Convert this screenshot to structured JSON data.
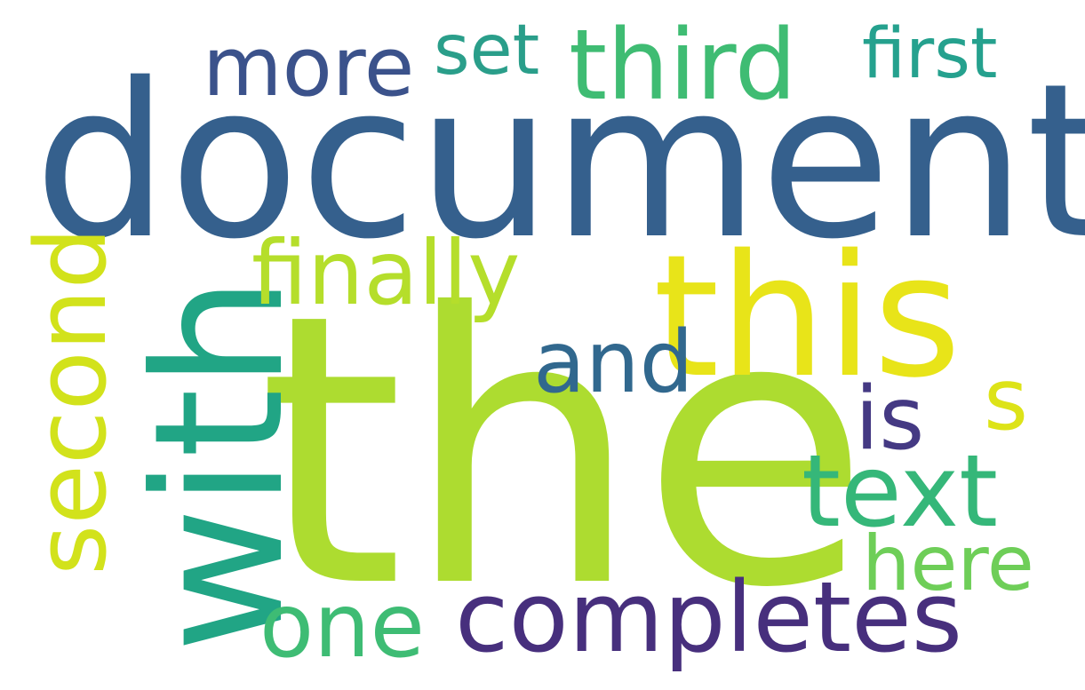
{
  "wordcloud": {
    "background": "#ffffff",
    "words": [
      {
        "text": "document",
        "color": "#35608d"
      },
      {
        "text": "the",
        "color": "#addc30"
      },
      {
        "text": "this",
        "color": "#e8e419"
      },
      {
        "text": "with",
        "color": "#21a585"
      },
      {
        "text": "completes",
        "color": "#472f7d"
      },
      {
        "text": "third",
        "color": "#3fbc73"
      },
      {
        "text": "finally",
        "color": "#b5de2b"
      },
      {
        "text": "first",
        "color": "#25a18e"
      },
      {
        "text": "more",
        "color": "#3b528b"
      },
      {
        "text": "set",
        "color": "#2a9e8a"
      },
      {
        "text": "second",
        "color": "#d2e21b"
      },
      {
        "text": "and",
        "color": "#31688e"
      },
      {
        "text": "is",
        "color": "#443983"
      },
      {
        "text": "s",
        "color": "#dde318"
      },
      {
        "text": "text",
        "color": "#35b779"
      },
      {
        "text": "here",
        "color": "#6ece58"
      },
      {
        "text": "one",
        "color": "#3ebc74"
      }
    ]
  }
}
